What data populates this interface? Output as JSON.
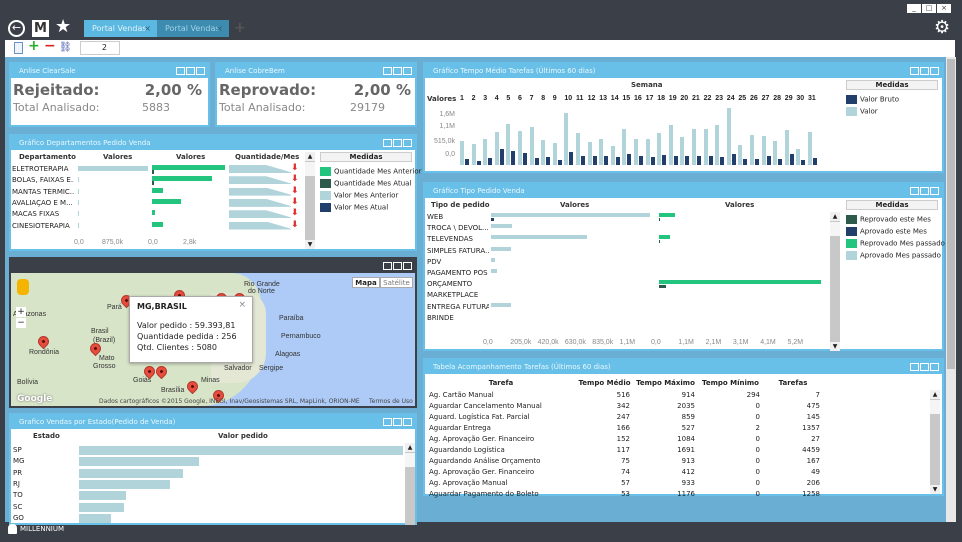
{
  "window": {
    "tabs": [
      {
        "label": "Portal Vendas"
      },
      {
        "label": "Portal Vendas"
      }
    ],
    "close": "×",
    "add": "+"
  },
  "toolbar": {
    "page_value": "2"
  },
  "clearsale": {
    "title": "Anlise ClearSale",
    "label": "Rejeitado:",
    "value": "2,00 %",
    "total_label": "Total Analisado:",
    "total": "5883"
  },
  "cobrebem": {
    "title": "Anlise CobreBem",
    "label": "Reprovado:",
    "value": "2,00 %",
    "total_label": "Total Analisado:",
    "total": "29179"
  },
  "departamentos": {
    "title": "Gráfico Departamentos Pedido Venda",
    "col_dept": "Departamento",
    "col_val1": "Valores",
    "col_val2": "Valores",
    "col_qty": "Quantidade/Mes",
    "medidas": "Medidas",
    "legend": [
      {
        "label": "Quantidade Mes Anterior",
        "color": "#22c47e"
      },
      {
        "label": "Quantidade Mes Atual",
        "color": "#2d5a4a"
      },
      {
        "label": "Valor Mes Anterior",
        "color": "#b0d4da"
      },
      {
        "label": "Valor Mes Atual",
        "color": "#213f6a"
      }
    ],
    "ticks1": [
      "0,0",
      "875,0k"
    ],
    "ticks2": [
      "0,0",
      "2,8k"
    ]
  },
  "map": {
    "popup_title": "MG,BRASIL",
    "popup_lines": [
      "Valor pedido  :  59.393,81",
      "Quantidade pedida  :  256",
      "Qtd. Clientes  :  5080"
    ],
    "btn_map": "Mapa",
    "btn_sat": "Satélite",
    "attribution": "Dados cartográficos ©2015 Google, INEGI, Inav/Geosistemas SRL, MapLink, ORION-ME",
    "terms": "Termos de Uso",
    "google": "Google",
    "places": [
      "Amazonas",
      "Brasil",
      "(Brazil)",
      "Rondônia",
      "Mato",
      "Grosso",
      "Goiás",
      "Brasília",
      "Minas",
      "Bolívia",
      "Rio Grande",
      "do Norte",
      "Paraíba",
      "Pernambuco",
      "Alagoas",
      "Salvador",
      "Sergipe",
      "Pará"
    ]
  },
  "estado": {
    "title": "Grafico Vendas por Estado(Pedido de Venda)",
    "col_estado": "Estado",
    "col_valor": "Valor pedido"
  },
  "tempo": {
    "title": "Gráfico Tempo Médio Tarefas (Últimos 60 dias)",
    "semana": "Semana",
    "valores": "Valores",
    "medidas": "Medidas",
    "ticks": [
      "1,6M",
      "1,1M",
      "515,0k",
      "0,0"
    ],
    "legend": [
      {
        "label": "Valor Bruto",
        "color": "#213f6a"
      },
      {
        "label": "Valor",
        "color": "#b0d4da"
      }
    ]
  },
  "tipo": {
    "title": "Gráfico Tipo Pedido Venda",
    "col_tipo": "Tipo de pedido",
    "col_val1": "Valores",
    "col_val2": "Valores",
    "medidas": "Medidas",
    "ticks1": [
      "0,0",
      "205,0k",
      "420,0k",
      "630,0k",
      "835,0k",
      "1,1M"
    ],
    "ticks2": [
      "0,0",
      "1,1M",
      "2,1M",
      "3,1M",
      "4,1M",
      "5,2M"
    ],
    "legend": [
      {
        "label": "Reprovado este Mes",
        "color": "#2d5a4a"
      },
      {
        "label": "Aprovado este Mes",
        "color": "#213f6a"
      },
      {
        "label": "Reprovado Mes passado",
        "color": "#22c47e"
      },
      {
        "label": "Aprovado Mes passado",
        "color": "#b0d4da"
      }
    ]
  },
  "tabela": {
    "title": "Tabela Acompanhamento Tarefas (Últimos 60 dias)",
    "columns": [
      "Tarefa",
      "Tempo Médio",
      "Tempo Máximo",
      "Tempo Mínimo",
      "Tarefas"
    ],
    "rows": [
      [
        "Ag. Cartão Manual",
        "516",
        "914",
        "294",
        "7"
      ],
      [
        "Aguardar Cancelamento Manual",
        "342",
        "2035",
        "0",
        "475"
      ],
      [
        "Aguard. Logística Fat. Parcial",
        "247",
        "859",
        "0",
        "145"
      ],
      [
        "Aguardar Entrega",
        "166",
        "527",
        "2",
        "1357"
      ],
      [
        "Ag. Aprovação Ger. Financeiro",
        "152",
        "1084",
        "0",
        "27"
      ],
      [
        "Aguardando Logística",
        "117",
        "1691",
        "0",
        "4459"
      ],
      [
        "Aguardando Análise Orçamento",
        "75",
        "913",
        "0",
        "167"
      ],
      [
        "Ag. Aprovação     Ger. Financeiro",
        "74",
        "412",
        "0",
        "49"
      ],
      [
        "Ag. Aprovação Manual",
        "57",
        "933",
        "0",
        "206"
      ],
      [
        "Aguardar  Pagamento do Boleto",
        "53",
        "1176",
        "0",
        "1258"
      ]
    ]
  },
  "status": {
    "user": "MILLENNIUM"
  },
  "chart_data": [
    {
      "type": "bar",
      "title": "Gráfico Departamentos Pedido Venda",
      "categories": [
        "ELETROTERAPIA",
        "BOLAS, FAIXAS E...",
        "MANTAS TÉRMIC...",
        "AVALIAÇÃO E M...",
        "MACAS FIXAS",
        "CINESIOTERAPIA"
      ],
      "series": [
        {
          "name": "Valor Mes Anterior",
          "values": [
            1710000,
            30000,
            30000,
            30000,
            10000,
            10000
          ]
        },
        {
          "name": "Quantidade Mes Anterior",
          "values": [
            5700,
            4700,
            830,
            2300,
            200,
            900
          ]
        },
        {
          "name": "Quantidade Mes Atual",
          "values": [
            150,
            100,
            0,
            0,
            0,
            0
          ]
        }
      ],
      "xlim_valor": [
        0,
        1750000
      ],
      "xlim_qty": [
        0,
        5800
      ]
    },
    {
      "type": "bar",
      "title": "Gráfico Tempo Médio Tarefas (Últimos 60 dias)",
      "xlabel": "Semana",
      "categories": [
        "1",
        "2",
        "3",
        "4",
        "5",
        "6",
        "7",
        "8",
        "9",
        "10",
        "11",
        "12",
        "13",
        "14",
        "15",
        "16",
        "17",
        "18",
        "19",
        "20",
        "21",
        "22",
        "23",
        "24",
        "25",
        "26",
        "27",
        "28",
        "29",
        "30",
        "31"
      ],
      "series": [
        {
          "name": "Valor",
          "values": [
            0.72,
            0.62,
            0.78,
            0.98,
            1.22,
            1.0,
            1.14,
            0.74,
            0.65,
            1.53,
            0.95,
            0.67,
            0.78,
            0.55,
            1.06,
            0.78,
            0.76,
            0.96,
            1.18,
            0.84,
            1.06,
            1.08,
            1.19,
            1.68,
            0.6,
            0.9,
            0.86,
            0.7,
            1.05,
            0.47,
            0.98
          ]
        },
        {
          "name": "Valor Bruto",
          "values": [
            0.19,
            0.11,
            0.21,
            0.47,
            0.42,
            0.36,
            0.22,
            0.24,
            0.14,
            0.4,
            0.28,
            0.26,
            0.28,
            0.24,
            0.33,
            0.26,
            0.24,
            0.31,
            0.26,
            0.28,
            0.28,
            0.28,
            0.24,
            0.34,
            0.19,
            0.19,
            0.26,
            0.19,
            0.34,
            0.14,
            0.21
          ]
        }
      ],
      "unit": "M",
      "ylim": [
        0,
        1.7
      ]
    },
    {
      "type": "bar",
      "title": "Gráfico Tipo Pedido Venda",
      "categories": [
        "WEB",
        "TROCA \\ DEVOL...",
        "TELEVENDAS",
        "SIMPLES FATURA...",
        "PDV",
        "PAGAMENTO PÓS",
        "ORÇAMENTO",
        "MARKETPLACE",
        "ENTREGA FUTURA",
        "BRINDE"
      ],
      "series": [
        {
          "name": "Aprovado Mes passado",
          "values": [
            1.29,
            0.17,
            0.78,
            0.16,
            0.03,
            0.05,
            0,
            0,
            0.16,
            0
          ]
        },
        {
          "name": "Aprovado este Mes",
          "values": [
            0.03,
            0,
            0,
            0,
            0,
            0,
            0,
            0,
            0,
            0
          ]
        },
        {
          "name": "Reprovado Mes passado",
          "values": [
            0.6,
            0,
            0.4,
            0,
            0,
            0,
            6.1,
            0,
            0,
            0
          ]
        },
        {
          "name": "Reprovado este Mes",
          "values": [
            0.02,
            0,
            0.02,
            0,
            0,
            0,
            0.25,
            0,
            0,
            0
          ]
        }
      ],
      "unit": "M",
      "xlim1": [
        0,
        1.3
      ],
      "xlim2": [
        0,
        6.2
      ]
    },
    {
      "type": "bar",
      "title": "Grafico Vendas por Estado(Pedido de Venda)",
      "categories": [
        "SP",
        "MG",
        "PR",
        "RJ",
        "TO",
        "SC",
        "GO"
      ],
      "series": [
        {
          "name": "Valor pedido (relative %)",
          "values": [
            100,
            37,
            32,
            28,
            14.5,
            14,
            10
          ]
        }
      ]
    }
  ]
}
